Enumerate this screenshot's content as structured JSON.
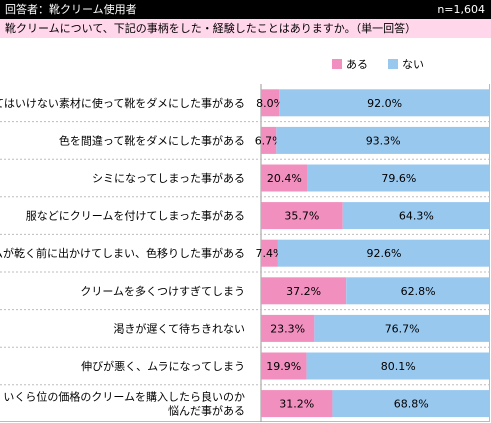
{
  "header": {
    "respondent": "回答者：靴クリーム使用者",
    "sample": "n=1,604"
  },
  "question": "靴クリームについて、下記の事柄をした・経験したことはありますか。（単一回答）",
  "colors": {
    "aru": "#f18fbe",
    "nai": "#99c8ef"
  },
  "chart_data": {
    "type": "bar",
    "orientation": "horizontal",
    "stacked": "percent",
    "legend_position": "top-right",
    "categories": [
      "使ってはいけない素材に使って靴をダメにした事がある",
      "色を間違って靴をダメにした事がある",
      "シミになってしまった事がある",
      "服などにクリームを付けてしまった事がある",
      "クリームが乾く前に出かけてしまい、色移りした事がある",
      "クリームを多くつけすぎてしまう",
      "渇きが遅くて待ちきれない",
      "伸びが悪く、ムラになってしまう",
      "いくら位の価格のクリームを購入したら良いのか悩んだ事がある"
    ],
    "series": [
      {
        "name": "ある",
        "values": [
          8.0,
          6.7,
          20.4,
          35.7,
          7.4,
          37.2,
          23.3,
          19.9,
          31.2
        ],
        "labels": [
          "8.0%",
          "6.7%",
          "20.4%",
          "35.7%",
          "7.4%",
          "37.2%",
          "23.3%",
          "19.9%",
          "31.2%"
        ]
      },
      {
        "name": "ない",
        "values": [
          92.0,
          93.3,
          79.6,
          64.3,
          92.6,
          62.8,
          76.7,
          80.1,
          68.8
        ],
        "labels": [
          "92.0%",
          "93.3%",
          "79.6%",
          "64.3%",
          "92.6%",
          "62.8%",
          "76.7%",
          "80.1%",
          "68.8%"
        ]
      }
    ],
    "xlim": [
      0,
      100
    ]
  }
}
